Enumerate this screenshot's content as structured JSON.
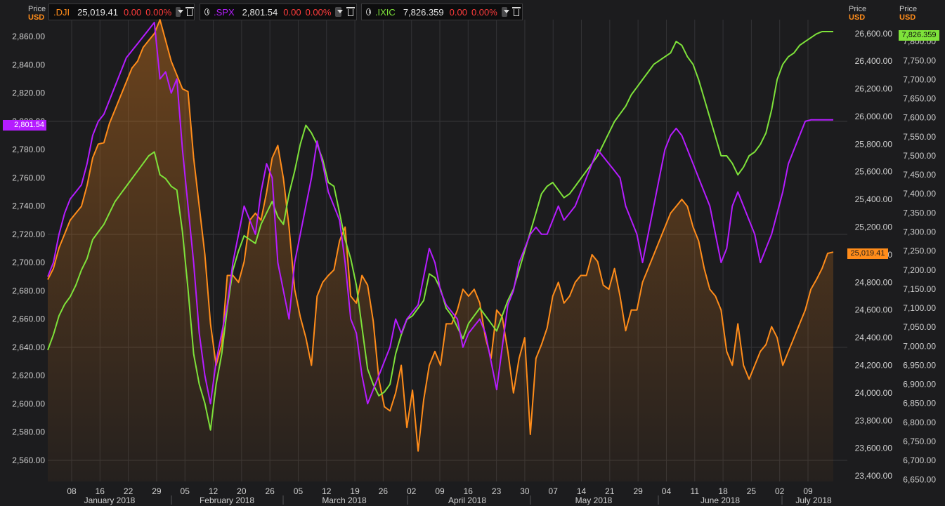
{
  "header_left": {
    "price": "Price",
    "currency": "USD"
  },
  "header_mid": {
    "price": "Price",
    "currency": "USD"
  },
  "header_right": {
    "price": "Price",
    "currency": "USD"
  },
  "legend": [
    {
      "symbol": ".DJI",
      "price": "25,019.41",
      "change": "0.00",
      "pct": "0.00%",
      "color": "#ff8c1a"
    },
    {
      "symbol": ".SPX",
      "price": "2,801.54",
      "change": "0.00",
      "pct": "0.00%",
      "color": "#b51cff"
    },
    {
      "symbol": ".IXIC",
      "price": "7,826.359",
      "change": "0.00",
      "pct": "0.00%",
      "color": "#7ee23a"
    }
  ],
  "badges": {
    "spx": "2,801.54",
    "dji": "25,019.41",
    "ixic": "7,826.359"
  },
  "chart_data": {
    "type": "line",
    "x_ticks": [
      "08",
      "16",
      "22",
      "29",
      "05",
      "12",
      "20",
      "26",
      "05",
      "12",
      "19",
      "26",
      "02",
      "09",
      "16",
      "23",
      "30",
      "07",
      "14",
      "21",
      "29",
      "04",
      "11",
      "18",
      "25",
      "02",
      "09"
    ],
    "months": [
      "January 2018",
      "February 2018",
      "March 2018",
      "April 2018",
      "May 2018",
      "June 2018",
      "July 2018"
    ],
    "y_left": {
      "ticks": [
        "2,560.00",
        "2,580.00",
        "2,600.00",
        "2,620.00",
        "2,640.00",
        "2,660.00",
        "2,680.00",
        "2,700.00",
        "2,720.00",
        "2,740.00",
        "2,760.00",
        "2,780.00",
        "2,800.00",
        "2,820.00",
        "2,840.00",
        "2,860.00"
      ],
      "range": [
        2545,
        2870
      ]
    },
    "y_dji": {
      "ticks": [
        "23,400.00",
        "23,600.00",
        "23,800.00",
        "24,000.00",
        "24,200.00",
        "24,400.00",
        "24,600.00",
        "24,800.00",
        "25,000.00",
        "25,200.00",
        "25,400.00",
        "25,600.00",
        "25,800.00",
        "26,000.00",
        "26,200.00",
        "26,400.00",
        "26,600.00"
      ],
      "range": [
        23360,
        26680
      ]
    },
    "y_ixic": {
      "ticks": [
        "6,650.00",
        "6,700.00",
        "6,750.00",
        "6,800.00",
        "6,850.00",
        "6,900.00",
        "6,950.00",
        "7,000.00",
        "7,050.00",
        "7,100.00",
        "7,150.00",
        "7,200.00",
        "7,250.00",
        "7,300.00",
        "7,350.00",
        "7,400.00",
        "7,450.00",
        "7,500.00",
        "7,550.00",
        "7,600.00",
        "7,650.00",
        "7,700.00",
        "7,750.00",
        "7,800.00"
      ],
      "range": [
        6645,
        7850
      ]
    },
    "series": [
      {
        "name": ".DJI",
        "axis": "dji",
        "color": "#ff8c1a",
        "x": [
          0,
          1,
          2,
          3,
          4,
          5,
          6,
          7,
          8,
          9,
          10,
          11,
          12,
          13,
          14,
          15,
          16,
          17,
          18,
          19,
          20,
          21,
          22,
          23,
          24,
          25,
          26,
          27,
          28,
          29,
          30,
          31,
          32,
          33,
          34,
          35,
          36,
          37,
          38,
          39,
          40,
          41,
          42,
          43,
          44,
          45,
          46,
          47,
          48,
          49,
          50,
          51,
          52,
          53,
          54,
          55,
          56,
          57,
          58,
          59,
          60,
          61,
          62,
          63,
          64,
          65,
          66,
          67,
          68,
          69,
          70,
          71,
          72,
          73,
          74,
          75,
          76,
          77,
          78,
          79,
          80,
          81,
          82,
          83,
          84,
          85,
          86,
          87,
          88,
          89,
          90,
          91,
          92,
          93,
          94,
          95,
          96,
          97,
          98,
          99,
          100,
          101,
          102,
          103,
          104,
          105,
          106,
          107,
          108,
          109,
          110,
          111,
          112,
          113,
          114,
          115,
          116,
          117,
          118,
          119,
          120,
          121,
          122,
          123,
          124,
          125,
          126,
          127,
          128,
          129,
          130,
          131,
          132,
          133,
          134,
          135,
          136,
          137,
          138,
          139,
          140
        ],
        "y": [
          24820,
          24900,
          25050,
          25150,
          25250,
          25300,
          25350,
          25500,
          25700,
          25800,
          25810,
          25950,
          26050,
          26150,
          26250,
          26350,
          26400,
          26500,
          26550,
          26600,
          26700,
          26550,
          26400,
          26300,
          26200,
          26180,
          25700,
          25350,
          25000,
          24500,
          24200,
          24350,
          24850,
          24850,
          24800,
          24950,
          25250,
          25300,
          25250,
          25450,
          25700,
          25790,
          25550,
          25200,
          24750,
          24550,
          24400,
          24200,
          24700,
          24800,
          24850,
          24890,
          25100,
          25200,
          24700,
          24650,
          24850,
          24780,
          24520,
          24100,
          23900,
          23870,
          24000,
          24200,
          23750,
          24020,
          23580,
          23950,
          24200,
          24300,
          24200,
          24500,
          24500,
          24600,
          24750,
          24700,
          24750,
          24650,
          24400,
          24250,
          24600,
          24550,
          24300,
          24000,
          24250,
          24400,
          23700,
          24250,
          24350,
          24470,
          24700,
          24800,
          24650,
          24700,
          24800,
          24850,
          24850,
          25000,
          24950,
          24780,
          24750,
          24900,
          24700,
          24450,
          24600,
          24600,
          24800,
          24900,
          25000,
          25100,
          25200,
          25300,
          25350,
          25400,
          25350,
          25200,
          25100,
          24900,
          24750,
          24700,
          24600,
          24300,
          24200,
          24500,
          24200,
          24100,
          24200,
          24300,
          24350,
          24480,
          24400,
          24200,
          24300,
          24400,
          24500,
          24600,
          24750,
          24820,
          24900,
          25010,
          25019
        ]
      },
      {
        "name": ".SPX",
        "axis": "left",
        "color": "#b51cff",
        "x": [
          0,
          1,
          2,
          3,
          4,
          5,
          6,
          7,
          8,
          9,
          10,
          11,
          12,
          13,
          14,
          15,
          16,
          17,
          18,
          19,
          20,
          21,
          22,
          23,
          24,
          25,
          26,
          27,
          28,
          29,
          30,
          31,
          32,
          33,
          34,
          35,
          36,
          37,
          38,
          39,
          40,
          41,
          42,
          43,
          44,
          45,
          46,
          47,
          48,
          49,
          50,
          51,
          52,
          53,
          54,
          55,
          56,
          57,
          58,
          59,
          60,
          61,
          62,
          63,
          64,
          65,
          66,
          67,
          68,
          69,
          70,
          71,
          72,
          73,
          74,
          75,
          76,
          77,
          78,
          79,
          80,
          81,
          82,
          83,
          84,
          85,
          86,
          87,
          88,
          89,
          90,
          91,
          92,
          93,
          94,
          95,
          96,
          97,
          98,
          99,
          100,
          101,
          102,
          103,
          104,
          105,
          106,
          107,
          108,
          109,
          110,
          111,
          112,
          113,
          114,
          115,
          116,
          117,
          118,
          119,
          120,
          121,
          122,
          123,
          124,
          125,
          126,
          127,
          128,
          129,
          130,
          131,
          132,
          133,
          134,
          135,
          136,
          137,
          138,
          139,
          140
        ],
        "y": [
          2690,
          2700,
          2720,
          2735,
          2745,
          2750,
          2755,
          2770,
          2790,
          2800,
          2805,
          2815,
          2825,
          2835,
          2845,
          2850,
          2855,
          2860,
          2865,
          2870,
          2830,
          2835,
          2820,
          2830,
          2780,
          2740,
          2700,
          2650,
          2620,
          2600,
          2630,
          2650,
          2670,
          2700,
          2720,
          2740,
          2730,
          2720,
          2750,
          2770,
          2760,
          2700,
          2680,
          2660,
          2700,
          2720,
          2740,
          2760,
          2786,
          2770,
          2750,
          2740,
          2730,
          2700,
          2660,
          2650,
          2620,
          2600,
          2610,
          2620,
          2630,
          2640,
          2660,
          2650,
          2660,
          2665,
          2670,
          2690,
          2710,
          2700,
          2680,
          2670,
          2665,
          2660,
          2640,
          2650,
          2655,
          2660,
          2650,
          2630,
          2610,
          2640,
          2670,
          2680,
          2700,
          2710,
          2720,
          2725,
          2720,
          2720,
          2730,
          2740,
          2730,
          2735,
          2740,
          2750,
          2760,
          2770,
          2780,
          2775,
          2770,
          2765,
          2760,
          2740,
          2730,
          2720,
          2700,
          2720,
          2740,
          2760,
          2780,
          2790,
          2795,
          2790,
          2780,
          2770,
          2760,
          2750,
          2740,
          2720,
          2700,
          2710,
          2740,
          2750,
          2740,
          2730,
          2720,
          2700,
          2710,
          2720,
          2735,
          2750,
          2770,
          2780,
          2790,
          2800,
          2801,
          2801,
          2801,
          2801,
          2801
        ]
      },
      {
        "name": ".IXIC",
        "axis": "ixic",
        "color": "#7ee23a",
        "x": [
          0,
          1,
          2,
          3,
          4,
          5,
          6,
          7,
          8,
          9,
          10,
          11,
          12,
          13,
          14,
          15,
          16,
          17,
          18,
          19,
          20,
          21,
          22,
          23,
          24,
          25,
          26,
          27,
          28,
          29,
          30,
          31,
          32,
          33,
          34,
          35,
          36,
          37,
          38,
          39,
          40,
          41,
          42,
          43,
          44,
          45,
          46,
          47,
          48,
          49,
          50,
          51,
          52,
          53,
          54,
          55,
          56,
          57,
          58,
          59,
          60,
          61,
          62,
          63,
          64,
          65,
          66,
          67,
          68,
          69,
          70,
          71,
          72,
          73,
          74,
          75,
          76,
          77,
          78,
          79,
          80,
          81,
          82,
          83,
          84,
          85,
          86,
          87,
          88,
          89,
          90,
          91,
          92,
          93,
          94,
          95,
          96,
          97,
          98,
          99,
          100,
          101,
          102,
          103,
          104,
          105,
          106,
          107,
          108,
          109,
          110,
          111,
          112,
          113,
          114,
          115,
          116,
          117,
          118,
          119,
          120,
          121,
          122,
          123,
          124,
          125,
          126,
          127,
          128,
          129,
          130,
          131,
          132,
          133,
          134,
          135,
          136,
          137,
          138,
          139,
          140
        ],
        "y": [
          6990,
          7030,
          7080,
          7110,
          7130,
          7160,
          7200,
          7230,
          7280,
          7300,
          7320,
          7350,
          7380,
          7400,
          7420,
          7440,
          7460,
          7480,
          7500,
          7510,
          7450,
          7440,
          7420,
          7410,
          7300,
          7150,
          6980,
          6900,
          6850,
          6780,
          6900,
          6980,
          7100,
          7200,
          7250,
          7290,
          7280,
          7270,
          7320,
          7350,
          7380,
          7340,
          7320,
          7400,
          7460,
          7530,
          7580,
          7560,
          7530,
          7490,
          7430,
          7420,
          7350,
          7280,
          7230,
          7160,
          7050,
          6940,
          6900,
          6870,
          6880,
          6900,
          6980,
          7030,
          7070,
          7080,
          7100,
          7120,
          7190,
          7180,
          7150,
          7100,
          7080,
          7050,
          7020,
          7060,
          7080,
          7100,
          7080,
          7060,
          7040,
          7080,
          7120,
          7150,
          7200,
          7250,
          7300,
          7350,
          7400,
          7420,
          7430,
          7410,
          7390,
          7400,
          7420,
          7440,
          7460,
          7480,
          7500,
          7530,
          7560,
          7590,
          7610,
          7630,
          7660,
          7680,
          7700,
          7720,
          7740,
          7750,
          7760,
          7770,
          7800,
          7790,
          7760,
          7740,
          7700,
          7650,
          7600,
          7550,
          7500,
          7500,
          7480,
          7450,
          7470,
          7500,
          7510,
          7530,
          7560,
          7620,
          7700,
          7740,
          7760,
          7770,
          7790,
          7800,
          7810,
          7820,
          7826,
          7826,
          7826
        ]
      }
    ]
  }
}
